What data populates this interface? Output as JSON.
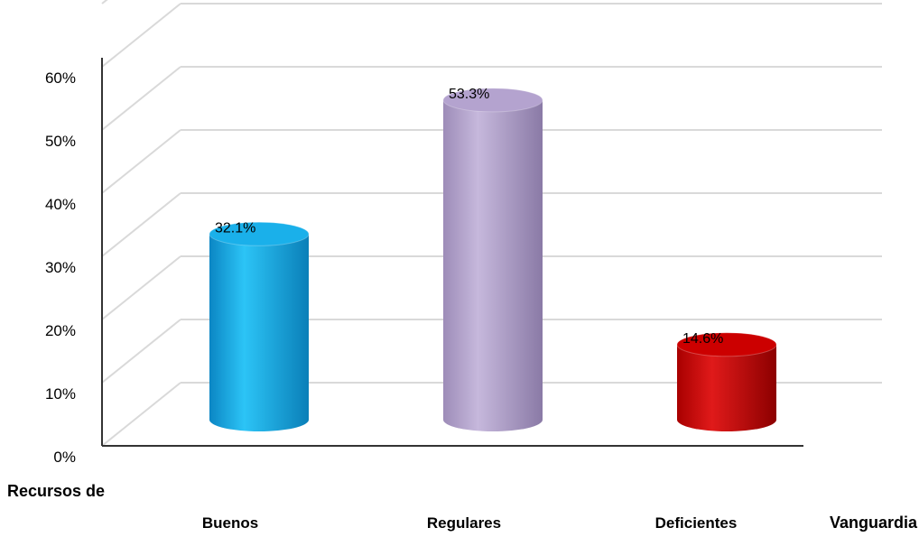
{
  "chart_data": {
    "type": "bar",
    "categories": [
      "Buenos",
      "Regulares",
      "Deficientes"
    ],
    "values": [
      32.1,
      53.3,
      14.6
    ],
    "data_labels": [
      "32.1%",
      "53.3%",
      "14.6%"
    ],
    "colors": [
      "#1ab0ea",
      "#b4a3cf",
      "#cc0000"
    ],
    "y_ticks": [
      "0%",
      "10%",
      "20%",
      "30%",
      "40%",
      "50%",
      "60%"
    ],
    "ylim": [
      0,
      60
    ],
    "grid": true,
    "legend": "none",
    "style": "3d-cylinder",
    "xlabel_line1": "Recursos de",
    "xlabel_line2": "Vanguardia"
  }
}
